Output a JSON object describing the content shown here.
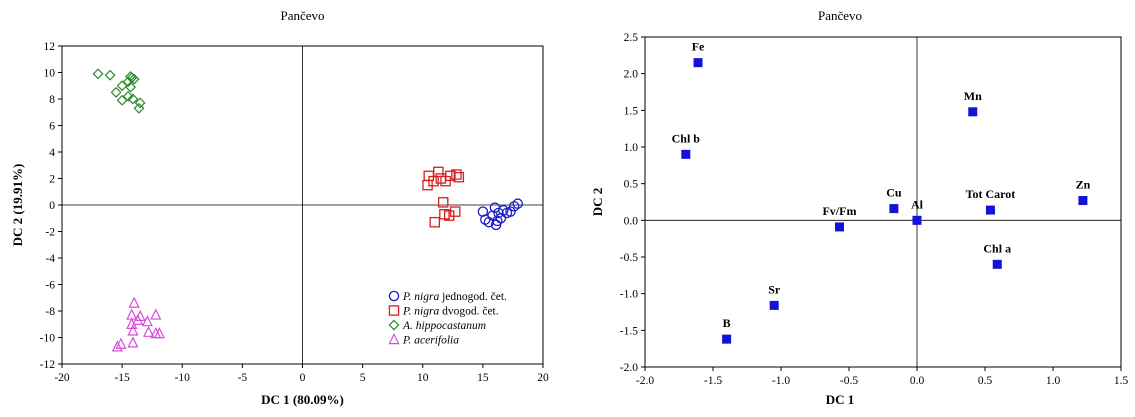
{
  "chart_data": [
    {
      "type": "scatter",
      "title": "Pančevo",
      "xlabel": "DC 1 (80.09%)",
      "ylabel": "DC 2 (19.91%)",
      "xlim": [
        -20,
        20
      ],
      "ylim": [
        -12,
        12
      ],
      "xticks": [
        -20,
        -15,
        -10,
        -5,
        0,
        5,
        10,
        15,
        20
      ],
      "yticks": [
        -12,
        -10,
        -8,
        -6,
        -4,
        -2,
        0,
        2,
        4,
        6,
        8,
        10,
        12
      ],
      "reference_lines": {
        "x": 0,
        "y": 0
      },
      "legend_position": "bottom-right",
      "series": [
        {
          "name": "P. nigra jednogod. čet.",
          "name_italic": "P. nigra",
          "name_rest": " jednogod. čet.",
          "marker": "circle",
          "color": "#1c1cc8",
          "points": [
            [
              15.0,
              -0.5
            ],
            [
              15.2,
              -1.1
            ],
            [
              15.5,
              -1.3
            ],
            [
              15.8,
              -0.8
            ],
            [
              16.0,
              -0.2
            ],
            [
              16.1,
              -1.5
            ],
            [
              16.3,
              -0.6
            ],
            [
              16.5,
              -1.0
            ],
            [
              16.7,
              -0.4
            ],
            [
              17.0,
              -0.6
            ],
            [
              17.3,
              -0.5
            ],
            [
              17.6,
              -0.1
            ],
            [
              17.9,
              0.1
            ],
            [
              16.2,
              -1.2
            ]
          ]
        },
        {
          "name": "P. nigra dvogod. čet.",
          "name_italic": "P. nigra",
          "name_rest": " dvogod. čet.",
          "marker": "square",
          "color": "#d42020",
          "points": [
            [
              10.4,
              1.5
            ],
            [
              10.5,
              2.2
            ],
            [
              10.9,
              1.8
            ],
            [
              11.3,
              2.5
            ],
            [
              11.5,
              2.0
            ],
            [
              11.9,
              1.8
            ],
            [
              12.3,
              2.2
            ],
            [
              12.8,
              2.3
            ],
            [
              13.0,
              2.1
            ],
            [
              11.7,
              0.2
            ],
            [
              12.7,
              -0.5
            ],
            [
              12.2,
              -0.8
            ],
            [
              11.8,
              -0.7
            ],
            [
              11.0,
              -1.3
            ]
          ]
        },
        {
          "name": "A. hippocastanum",
          "name_italic": "A. hippocastanum",
          "name_rest": "",
          "marker": "diamond",
          "color": "#2a8a2a",
          "points": [
            [
              -17.0,
              9.9
            ],
            [
              -16.0,
              9.8
            ],
            [
              -14.3,
              9.7
            ],
            [
              -14.0,
              9.5
            ],
            [
              -14.5,
              9.3
            ],
            [
              -15.0,
              9.0
            ],
            [
              -14.3,
              8.9
            ],
            [
              -15.5,
              8.5
            ],
            [
              -14.5,
              8.2
            ],
            [
              -14.1,
              8.0
            ],
            [
              -15.0,
              7.9
            ],
            [
              -13.5,
              7.7
            ],
            [
              -13.6,
              7.3
            ],
            [
              -14.2,
              9.6
            ]
          ]
        },
        {
          "name": "P. acerifolia",
          "name_italic": "P. acerifolia",
          "name_rest": "",
          "marker": "triangle",
          "color": "#d94bd9",
          "points": [
            [
              -14.0,
              -7.4
            ],
            [
              -14.2,
              -8.3
            ],
            [
              -13.5,
              -8.4
            ],
            [
              -12.2,
              -8.3
            ],
            [
              -13.7,
              -8.7
            ],
            [
              -14.2,
              -9.0
            ],
            [
              -12.9,
              -8.8
            ],
            [
              -14.1,
              -9.5
            ],
            [
              -12.8,
              -9.6
            ],
            [
              -12.2,
              -9.7
            ],
            [
              -11.9,
              -9.7
            ],
            [
              -14.1,
              -10.4
            ],
            [
              -15.1,
              -10.5
            ],
            [
              -15.4,
              -10.7
            ]
          ]
        }
      ]
    },
    {
      "type": "scatter",
      "title": "Pančevo",
      "xlabel": "DC 1",
      "ylabel": "DC 2",
      "xlim": [
        -2.0,
        1.5
      ],
      "ylim": [
        -2.0,
        2.5
      ],
      "xticks": [
        "-2.0",
        "-1.5",
        "-1.0",
        "-0.5",
        "0.0",
        "0.5",
        "1.0",
        "1.5"
      ],
      "yticks": [
        "-2.0",
        "-1.5",
        "-1.0",
        "-0.5",
        "0.0",
        "0.5",
        "1.0",
        "1.5",
        "2.0",
        "2.5"
      ],
      "reference_lines": {
        "x": 0,
        "y": 0
      },
      "marker_color": "#1212d8",
      "points": [
        {
          "label": "Fe",
          "x": -1.61,
          "y": 2.15
        },
        {
          "label": "Mn",
          "x": 0.41,
          "y": 1.48
        },
        {
          "label": "Chl b",
          "x": -1.7,
          "y": 0.9
        },
        {
          "label": "Zn",
          "x": 1.22,
          "y": 0.27
        },
        {
          "label": "Cu",
          "x": -0.17,
          "y": 0.16
        },
        {
          "label": "Tot Carot",
          "x": 0.54,
          "y": 0.14
        },
        {
          "label": "Fv/Fm",
          "x": -0.57,
          "y": -0.09
        },
        {
          "label": "Al",
          "x": 0.0,
          "y": 0.0
        },
        {
          "label": "Chl a",
          "x": 0.59,
          "y": -0.6
        },
        {
          "label": "Sr",
          "x": -1.05,
          "y": -1.16
        },
        {
          "label": "B",
          "x": -1.4,
          "y": -1.62
        }
      ]
    }
  ]
}
